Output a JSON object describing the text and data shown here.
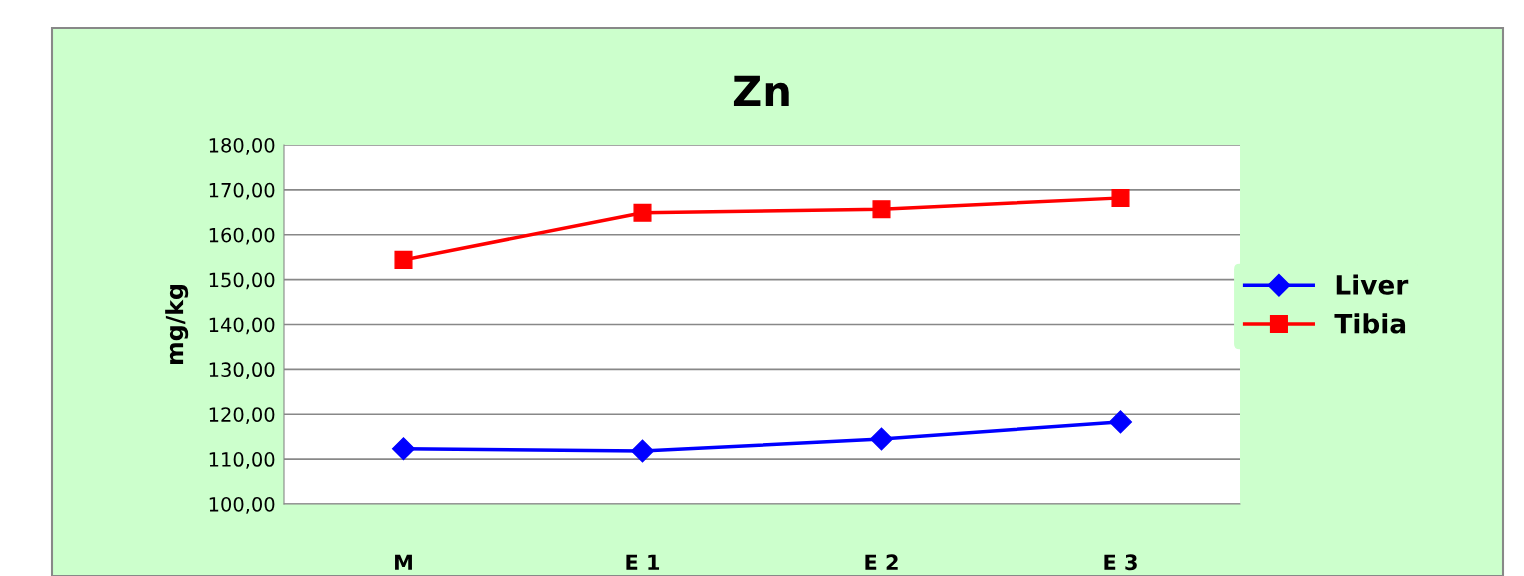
{
  "chart_data": {
    "type": "line",
    "title": "Zn",
    "ylabel": "mg/kg",
    "categories": [
      "M",
      "E 1",
      "E 2",
      "E 3"
    ],
    "series": [
      {
        "name": "Liver",
        "color": "#0000ff",
        "marker": "diamond",
        "values": [
          112.3,
          111.8,
          114.5,
          118.3
        ]
      },
      {
        "name": "Tibia",
        "color": "#ff0000",
        "marker": "square",
        "values": [
          154.4,
          164.9,
          165.7,
          168.2
        ]
      }
    ],
    "ylim": [
      100,
      180
    ],
    "yticks": [
      {
        "value": 100,
        "label": "100,00"
      },
      {
        "value": 110,
        "label": "110,00"
      },
      {
        "value": 120,
        "label": "120,00"
      },
      {
        "value": 130,
        "label": "130,00"
      },
      {
        "value": 140,
        "label": "140,00"
      },
      {
        "value": 150,
        "label": "150,00"
      },
      {
        "value": 160,
        "label": "160,00"
      },
      {
        "value": 170,
        "label": "170,00"
      },
      {
        "value": 180,
        "label": "180,00"
      }
    ],
    "grid": "y",
    "legend": "right",
    "line_style": "solid"
  }
}
